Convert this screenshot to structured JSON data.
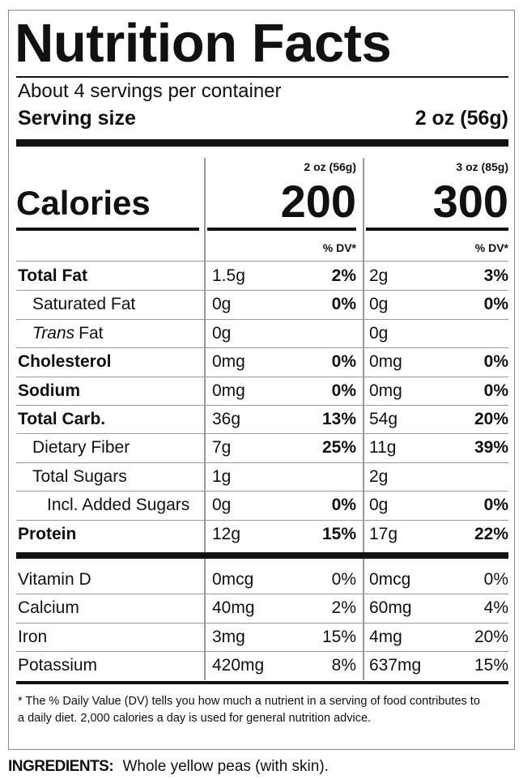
{
  "title": "Nutrition Facts",
  "servings": "About 4 servings per container",
  "serving_size_label": "Serving size",
  "serving_size": "2 oz (56g)",
  "calories_label": "Calories",
  "columns": [
    {
      "size": "2 oz (56g)",
      "calories": "200",
      "dv_header": "% DV*"
    },
    {
      "size": "3 oz (85g)",
      "calories": "300",
      "dv_header": "% DV*"
    }
  ],
  "nutrients": [
    {
      "name": "Total Fat",
      "bold": true,
      "indent": 0,
      "values": [
        [
          "1.5g",
          "2%"
        ],
        [
          "2g",
          "3%"
        ]
      ]
    },
    {
      "name": "Saturated Fat",
      "bold": false,
      "indent": 1,
      "values": [
        [
          "0g",
          "0%"
        ],
        [
          "0g",
          "0%"
        ]
      ]
    },
    {
      "prefix": "Trans",
      "name": "Fat",
      "bold": false,
      "indent": 1,
      "values": [
        [
          "0g",
          null
        ],
        [
          "0g",
          null
        ]
      ]
    },
    {
      "name": "Cholesterol",
      "bold": true,
      "indent": 0,
      "values": [
        [
          "0mg",
          "0%"
        ],
        [
          "0mg",
          "0%"
        ]
      ]
    },
    {
      "name": "Sodium",
      "bold": true,
      "indent": 0,
      "values": [
        [
          "0mg",
          "0%"
        ],
        [
          "0mg",
          "0%"
        ]
      ]
    },
    {
      "name": "Total Carb.",
      "bold": true,
      "indent": 0,
      "values": [
        [
          "36g",
          "13%"
        ],
        [
          "54g",
          "20%"
        ]
      ]
    },
    {
      "name": "Dietary Fiber",
      "bold": false,
      "indent": 1,
      "values": [
        [
          "7g",
          "25%"
        ],
        [
          "11g",
          "39%"
        ]
      ]
    },
    {
      "name": "Total Sugars",
      "bold": false,
      "indent": 1,
      "values": [
        [
          "1g",
          null
        ],
        [
          "2g",
          null
        ]
      ]
    },
    {
      "name": "Incl. Added Sugars",
      "bold": false,
      "indent": 2,
      "values": [
        [
          "0g",
          "0%"
        ],
        [
          "0g",
          "0%"
        ]
      ]
    },
    {
      "name": "Protein",
      "bold": true,
      "indent": 0,
      "values": [
        [
          "12g",
          "15%"
        ],
        [
          "17g",
          "22%"
        ]
      ]
    }
  ],
  "vitamins": [
    {
      "name": "Vitamin D",
      "values": [
        [
          "0mcg",
          "0%"
        ],
        [
          "0mcg",
          "0%"
        ]
      ]
    },
    {
      "name": "Calcium",
      "values": [
        [
          "40mg",
          "2%"
        ],
        [
          "60mg",
          "4%"
        ]
      ]
    },
    {
      "name": "Iron",
      "values": [
        [
          "3mg",
          "15%"
        ],
        [
          "4mg",
          "20%"
        ]
      ]
    },
    {
      "name": "Potassium",
      "values": [
        [
          "420mg",
          "8%"
        ],
        [
          "637mg",
          "15%"
        ]
      ]
    }
  ],
  "footnote": "* The % Daily Value (DV) tells you how much a nutrient in a serving of food contributes to a daily diet. 2,000 calories a day is used for general nutrition advice.",
  "ingredients": {
    "label": "INGREDIENTS:",
    "text": "Whole yellow peas (with skin)."
  }
}
